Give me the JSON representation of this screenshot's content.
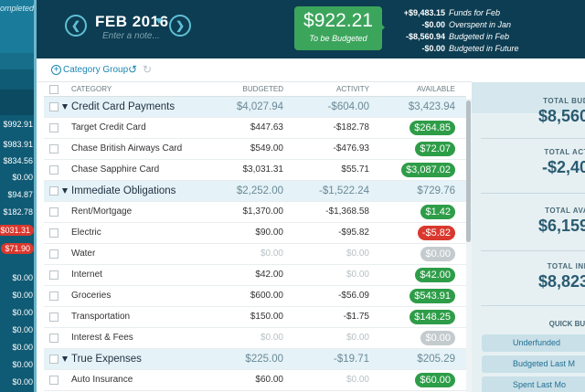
{
  "sidebar": {
    "notice": "ompleted!",
    "amounts": [
      {
        "text": "$992.91",
        "negative": false
      },
      {
        "text": "$983.91",
        "negative": false
      },
      {
        "text": "$834.56",
        "negative": false
      },
      {
        "text": "$0.00",
        "negative": false
      },
      {
        "text": "$94.87",
        "negative": false
      },
      {
        "text": "$182.78",
        "negative": false
      },
      {
        "text": "$031.31",
        "negative": true
      },
      {
        "text": "$71.90",
        "negative": true
      },
      {
        "text": "$0.00",
        "negative": false
      },
      {
        "text": "$0.00",
        "negative": false
      },
      {
        "text": "$0.00",
        "negative": false
      },
      {
        "text": "$0.00",
        "negative": false
      },
      {
        "text": "$0.00",
        "negative": false
      },
      {
        "text": "$0.00",
        "negative": false
      },
      {
        "text": "$0.00",
        "negative": false
      }
    ]
  },
  "header": {
    "prev_icon": "chevron-left-icon",
    "next_icon": "chevron-right-icon",
    "month": "FEB 2016",
    "note_placeholder": "Enter a note...",
    "to_be_budgeted": {
      "amount": "$922.21",
      "label": "To be Budgeted"
    },
    "summary": [
      {
        "value": "+$9,483.15",
        "label": "Funds for Feb"
      },
      {
        "value": "-$0.00",
        "label": "Overspent in Jan"
      },
      {
        "value": "-$8,560.94",
        "label": "Budgeted in Feb"
      },
      {
        "value": "-$0.00",
        "label": "Budgeted in Future"
      }
    ]
  },
  "toolbar": {
    "add_category_group": "Category Group",
    "undo_icon": "undo-icon",
    "redo_icon": "redo-icon"
  },
  "table": {
    "headers": {
      "category": "CATEGORY",
      "budgeted": "BUDGETED",
      "activity": "ACTIVITY",
      "available": "AVAILABLE"
    },
    "rows": [
      {
        "type": "group",
        "name": "Credit Card Payments",
        "budgeted": "$4,027.94",
        "activity": "-$604.00",
        "available": "$3,423.94",
        "status": "plain"
      },
      {
        "type": "item",
        "name": "Target Credit Card",
        "budgeted": "$447.63",
        "activity": "-$182.78",
        "available": "$264.85",
        "status": "pos"
      },
      {
        "type": "item",
        "name": "Chase British Airways Card",
        "budgeted": "$549.00",
        "activity": "-$476.93",
        "available": "$72.07",
        "status": "pos"
      },
      {
        "type": "item",
        "name": "Chase Sapphire Card",
        "budgeted": "$3,031.31",
        "activity": "$55.71",
        "available": "$3,087.02",
        "status": "pos"
      },
      {
        "type": "group",
        "name": "Immediate Obligations",
        "budgeted": "$2,252.00",
        "activity": "-$1,522.24",
        "available": "$729.76",
        "status": "plain"
      },
      {
        "type": "item",
        "name": "Rent/Mortgage",
        "budgeted": "$1,370.00",
        "activity": "-$1,368.58",
        "available": "$1.42",
        "status": "pos"
      },
      {
        "type": "item",
        "name": "Electric",
        "budgeted": "$90.00",
        "activity": "-$95.82",
        "available": "-$5.82",
        "status": "neg"
      },
      {
        "type": "item",
        "name": "Water",
        "budgeted": "$0.00",
        "activity": "$0.00",
        "available": "$0.00",
        "status": "zero"
      },
      {
        "type": "item",
        "name": "Internet",
        "budgeted": "$42.00",
        "activity": "$0.00",
        "available": "$42.00",
        "status": "pos"
      },
      {
        "type": "item",
        "name": "Groceries",
        "budgeted": "$600.00",
        "activity": "-$56.09",
        "available": "$543.91",
        "status": "pos"
      },
      {
        "type": "item",
        "name": "Transportation",
        "budgeted": "$150.00",
        "activity": "-$1.75",
        "available": "$148.25",
        "status": "pos"
      },
      {
        "type": "item",
        "name": "Interest & Fees",
        "budgeted": "$0.00",
        "activity": "$0.00",
        "available": "$0.00",
        "status": "zero"
      },
      {
        "type": "group",
        "name": "True Expenses",
        "budgeted": "$225.00",
        "activity": "-$19.71",
        "available": "$205.29",
        "status": "plain"
      },
      {
        "type": "item",
        "name": "Auto Insurance",
        "budgeted": "$60.00",
        "activity": "$0.00",
        "available": "$60.00",
        "status": "pos"
      }
    ]
  },
  "inspector": {
    "stats": [
      {
        "label": "TOTAL BUD",
        "value": "$8,560"
      },
      {
        "label": "TOTAL ACT",
        "value": "-$2,40"
      },
      {
        "label": "TOTAL AVA",
        "value": "$6,159"
      },
      {
        "label": "TOTAL INF",
        "value": "$8,823"
      }
    ],
    "quick_budget_title": "QUICK BUD",
    "quick_buttons": [
      "Underfunded",
      "Budgeted Last M",
      "Spent Last Mo"
    ]
  },
  "colors": {
    "header_bg": "#0d3d52",
    "to_be_budgeted_green": "#3ca55c",
    "positive_pill": "#2e9d48",
    "negative_pill": "#d9382e",
    "zero_pill": "#c4cbce",
    "accent_blue": "#1c86b2"
  }
}
